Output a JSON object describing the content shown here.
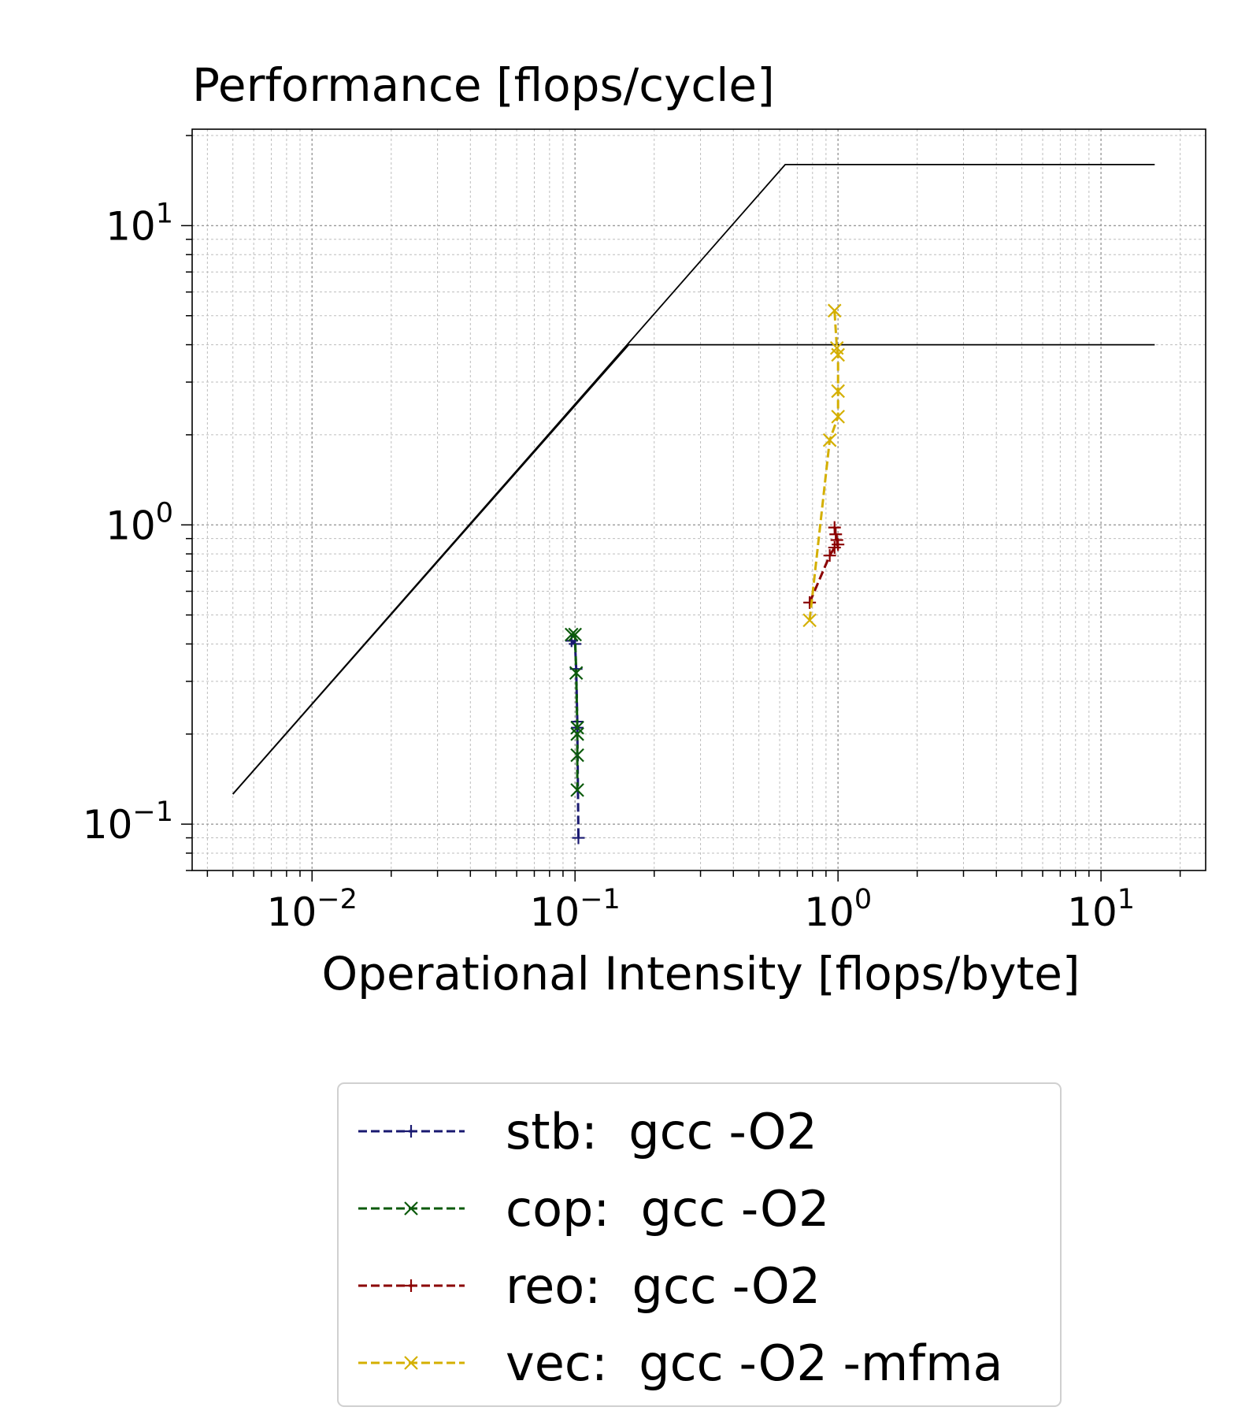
{
  "chart_data": {
    "type": "line",
    "title": "Performance [flops/cycle]",
    "xlabel": "Operational Intensity [flops/byte]",
    "ylabel": "",
    "xscale": "log",
    "yscale": "log",
    "xlim": [
      0.0035,
      25
    ],
    "ylim": [
      0.07,
      21
    ],
    "grid": "on (major and minor, dotted)",
    "legend_position": "below plot",
    "x_ticks": [
      {
        "base": "10",
        "exp": "−2",
        "value": 0.01
      },
      {
        "base": "10",
        "exp": "−1",
        "value": 0.1
      },
      {
        "base": "10",
        "exp": "0",
        "value": 1
      },
      {
        "base": "10",
        "exp": "1",
        "value": 10
      }
    ],
    "y_ticks": [
      {
        "base": "10",
        "exp": "−1",
        "value": 0.1
      },
      {
        "base": "10",
        "exp": "0",
        "value": 1
      },
      {
        "base": "10",
        "exp": "1",
        "value": 10
      }
    ],
    "rooflines": [
      {
        "points": [
          [
            0.005,
            0.126
          ],
          [
            0.63,
            16
          ],
          [
            16,
            16
          ]
        ],
        "color": "#000000"
      },
      {
        "points": [
          [
            0.005,
            0.126
          ],
          [
            0.16,
            4
          ],
          [
            16,
            4
          ]
        ],
        "color": "#000000"
      }
    ],
    "series": [
      {
        "name": "stb:  gcc -O2",
        "color": "#191970",
        "marker": "+",
        "linestyle": "dashed",
        "points": [
          [
            0.097,
            0.41
          ],
          [
            0.1,
            0.4
          ],
          [
            0.101,
            0.33
          ],
          [
            0.102,
            0.22
          ],
          [
            0.102,
            0.21
          ],
          [
            0.103,
            0.09
          ]
        ]
      },
      {
        "name": "cop:  gcc -O2",
        "color": "#0b5a0b",
        "marker": "x",
        "linestyle": "dashed",
        "points": [
          [
            0.097,
            0.43
          ],
          [
            0.1,
            0.43
          ],
          [
            0.101,
            0.32
          ],
          [
            0.102,
            0.21
          ],
          [
            0.102,
            0.2
          ],
          [
            0.102,
            0.17
          ],
          [
            0.102,
            0.13
          ]
        ]
      },
      {
        "name": "reo:  gcc -O2",
        "color": "#8b0000",
        "marker": "+",
        "linestyle": "dashed",
        "points": [
          [
            0.78,
            0.55
          ],
          [
            0.93,
            0.79
          ],
          [
            0.97,
            0.84
          ],
          [
            1.0,
            0.86
          ],
          [
            0.99,
            0.89
          ],
          [
            0.98,
            0.93
          ],
          [
            0.97,
            0.98
          ]
        ]
      },
      {
        "name": "vec:  gcc -O2 -mfma",
        "color": "#d4af00",
        "marker": "x",
        "linestyle": "dashed",
        "points": [
          [
            0.78,
            0.48
          ],
          [
            0.93,
            1.92
          ],
          [
            1.0,
            2.3
          ],
          [
            1.0,
            2.8
          ],
          [
            1.0,
            3.7
          ],
          [
            0.99,
            3.9
          ],
          [
            0.97,
            5.2
          ]
        ]
      }
    ]
  }
}
